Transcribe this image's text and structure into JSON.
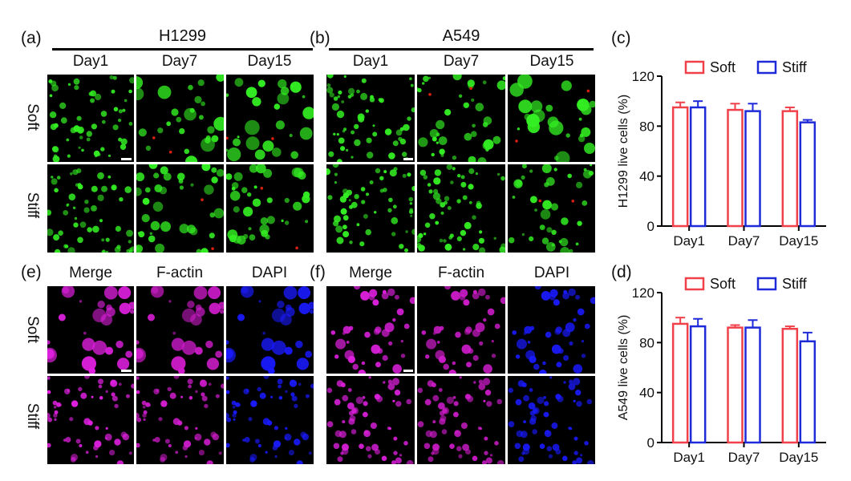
{
  "panels": {
    "a": {
      "label": "(a)",
      "title": "H1299",
      "columns": [
        "Day1",
        "Day7",
        "Day15"
      ],
      "rows": [
        "Soft",
        "Stiff"
      ]
    },
    "b": {
      "label": "(b)",
      "title": "A549",
      "columns": [
        "Day1",
        "Day7",
        "Day15"
      ],
      "rows": [
        "Soft",
        "Stiff"
      ]
    },
    "e": {
      "label": "(e)",
      "columns": [
        "Merge",
        "F-actin",
        "DAPI"
      ],
      "rows": [
        "Soft",
        "Stiff"
      ]
    },
    "f": {
      "label": "(f)",
      "columns": [
        "Merge",
        "F-actin",
        "DAPI"
      ],
      "rows": [
        "Soft",
        "Stiff"
      ]
    },
    "c": {
      "label": "(c)"
    },
    "d": {
      "label": "(d)"
    }
  },
  "colors": {
    "soft": "#f0404a",
    "stiff": "#1f2bd8",
    "live": "#33ee22",
    "dead": "#d92010",
    "merge": "#e020e0",
    "factin": "#d01ccc",
    "dapi": "#1a1aff"
  },
  "chart_data": [
    {
      "id": "c",
      "type": "bar",
      "categories": [
        "Day1",
        "Day7",
        "Day15"
      ],
      "series": [
        {
          "name": "Soft",
          "values": [
            95,
            93,
            92
          ],
          "errors": [
            4,
            5,
            3
          ]
        },
        {
          "name": "Stiff",
          "values": [
            95,
            92,
            83
          ],
          "errors": [
            5,
            6,
            2
          ]
        }
      ],
      "ylabel": "H1299 live cells (%)",
      "yticks": [
        0,
        40,
        80,
        120
      ],
      "ylim": [
        0,
        120
      ],
      "legend": "top"
    },
    {
      "id": "d",
      "type": "bar",
      "categories": [
        "Day1",
        "Day7",
        "Day15"
      ],
      "series": [
        {
          "name": "Soft",
          "values": [
            95,
            92,
            91
          ],
          "errors": [
            5,
            2,
            2
          ]
        },
        {
          "name": "Stiff",
          "values": [
            93,
            92,
            81
          ],
          "errors": [
            6,
            6,
            7
          ]
        }
      ],
      "ylabel": "A549 live cells (%)",
      "yticks": [
        0,
        40,
        80,
        120
      ],
      "ylim": [
        0,
        120
      ],
      "legend": "top"
    }
  ]
}
